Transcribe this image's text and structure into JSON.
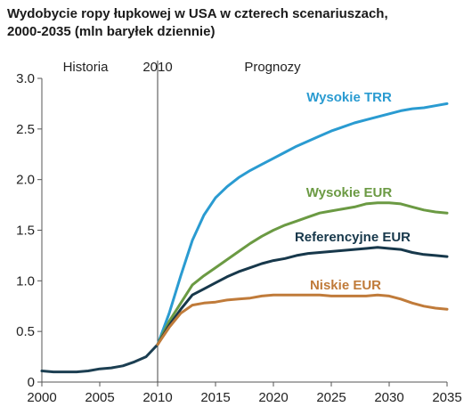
{
  "title_line1": "Wydobycie ropy łupkowej w USA w czterech scenariuszach,",
  "title_line2": "2000-2035 (mln baryłek dziennie)",
  "chart_data": {
    "type": "line",
    "title": "Wydobycie ropy łupkowej w USA w czterech scenariuszach, 2000-2035 (mln baryłek dziennie)",
    "xlabel": "",
    "ylabel": "",
    "xlim": [
      2000,
      2035
    ],
    "ylim": [
      0,
      3.0
    ],
    "x_ticks": [
      2000,
      2005,
      2010,
      2015,
      2020,
      2025,
      2030,
      2035
    ],
    "y_ticks": [
      "0",
      "0.5",
      "1.0",
      "1.5",
      "2.0",
      "2.5",
      "3.0"
    ],
    "grid": false,
    "annotations": {
      "history": "Historia",
      "divider_year": 2010,
      "divider_label": "2010",
      "forecast": "Prognozy"
    },
    "historical": {
      "color": "#1c3f52",
      "x": [
        2000,
        2001,
        2002,
        2003,
        2004,
        2005,
        2006,
        2007,
        2008,
        2009,
        2010
      ],
      "y": [
        0.11,
        0.1,
        0.1,
        0.1,
        0.11,
        0.13,
        0.14,
        0.16,
        0.2,
        0.25,
        0.37
      ]
    },
    "series": [
      {
        "name": "Wysokie TRR",
        "color": "#2a9bd1",
        "x": [
          2010,
          2011,
          2012,
          2013,
          2014,
          2015,
          2016,
          2017,
          2018,
          2019,
          2020,
          2021,
          2022,
          2023,
          2024,
          2025,
          2026,
          2027,
          2028,
          2029,
          2030,
          2031,
          2032,
          2033,
          2034,
          2035
        ],
        "y": [
          0.37,
          0.68,
          1.05,
          1.4,
          1.65,
          1.82,
          1.93,
          2.02,
          2.09,
          2.15,
          2.21,
          2.27,
          2.33,
          2.38,
          2.43,
          2.48,
          2.52,
          2.56,
          2.59,
          2.62,
          2.65,
          2.68,
          2.7,
          2.71,
          2.73,
          2.75
        ]
      },
      {
        "name": "Wysokie EUR",
        "color": "#6b9a43",
        "x": [
          2010,
          2011,
          2012,
          2013,
          2014,
          2015,
          2016,
          2017,
          2018,
          2019,
          2020,
          2021,
          2022,
          2023,
          2024,
          2025,
          2026,
          2027,
          2028,
          2029,
          2030,
          2031,
          2032,
          2033,
          2034,
          2035
        ],
        "y": [
          0.37,
          0.6,
          0.78,
          0.96,
          1.05,
          1.13,
          1.21,
          1.29,
          1.37,
          1.44,
          1.5,
          1.55,
          1.59,
          1.63,
          1.67,
          1.69,
          1.71,
          1.73,
          1.76,
          1.77,
          1.77,
          1.76,
          1.73,
          1.7,
          1.68,
          1.67
        ]
      },
      {
        "name": "Referencyjne EUR",
        "color": "#17384b",
        "x": [
          2010,
          2011,
          2012,
          2013,
          2014,
          2015,
          2016,
          2017,
          2018,
          2019,
          2020,
          2021,
          2022,
          2023,
          2024,
          2025,
          2026,
          2027,
          2028,
          2029,
          2030,
          2031,
          2032,
          2033,
          2034,
          2035
        ],
        "y": [
          0.37,
          0.56,
          0.72,
          0.86,
          0.92,
          0.98,
          1.04,
          1.09,
          1.13,
          1.17,
          1.2,
          1.22,
          1.25,
          1.27,
          1.28,
          1.29,
          1.3,
          1.31,
          1.32,
          1.33,
          1.32,
          1.31,
          1.28,
          1.26,
          1.25,
          1.24
        ]
      },
      {
        "name": "Niskie EUR",
        "color": "#c07b3a",
        "x": [
          2010,
          2011,
          2012,
          2013,
          2014,
          2015,
          2016,
          2017,
          2018,
          2019,
          2020,
          2021,
          2022,
          2023,
          2024,
          2025,
          2026,
          2027,
          2028,
          2029,
          2030,
          2031,
          2032,
          2033,
          2034,
          2035
        ],
        "y": [
          0.37,
          0.54,
          0.68,
          0.76,
          0.78,
          0.79,
          0.81,
          0.82,
          0.83,
          0.85,
          0.86,
          0.86,
          0.86,
          0.86,
          0.86,
          0.85,
          0.85,
          0.85,
          0.85,
          0.86,
          0.85,
          0.82,
          0.78,
          0.75,
          0.73,
          0.72
        ]
      }
    ]
  }
}
